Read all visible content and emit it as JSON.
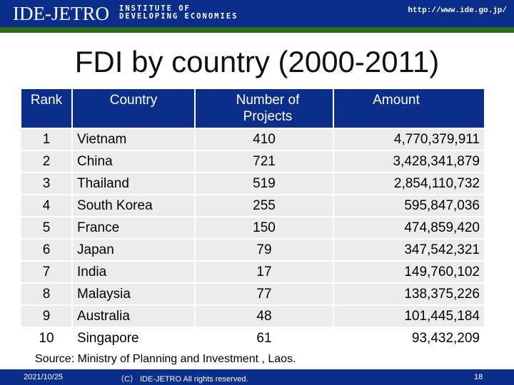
{
  "header": {
    "logo": "IDE-JETRO",
    "institute_line1": "INSTITUTE OF",
    "institute_line2": "DEVELOPING ECONOMIES",
    "url": "http://www.ide.go.jp/"
  },
  "title": "FDI by country (2000-2011)",
  "table": {
    "headers": [
      "Rank",
      "Country",
      "Number of Projects",
      "Amount"
    ],
    "rows": [
      {
        "rank": "1",
        "country": "Vietnam",
        "projects": "410",
        "amount": "4,770,379,911"
      },
      {
        "rank": "2",
        "country": "China",
        "projects": "721",
        "amount": "3,428,341,879"
      },
      {
        "rank": "3",
        "country": "Thailand",
        "projects": "519",
        "amount": "2,854,110,732"
      },
      {
        "rank": "4",
        "country": "South Korea",
        "projects": "255",
        "amount": "595,847,036"
      },
      {
        "rank": "5",
        "country": "France",
        "projects": "150",
        "amount": "474,859,420"
      },
      {
        "rank": "6",
        "country": "Japan",
        "projects": "79",
        "amount": "347,542,321"
      },
      {
        "rank": "7",
        "country": "India",
        "projects": "17",
        "amount": "149,760,102"
      },
      {
        "rank": "8",
        "country": "Malaysia",
        "projects": "77",
        "amount": "138,375,226"
      },
      {
        "rank": "9",
        "country": "Australia",
        "projects": "48",
        "amount": "101,445,184"
      },
      {
        "rank": "10",
        "country": "Singapore",
        "projects": "61",
        "amount": "93,432,209"
      }
    ]
  },
  "source": "Source: Ministry of Planning and Investment , Laos.",
  "footer": {
    "date": "2021/10/25",
    "copyright": "（C） IDE-JETRO All rights reserved.",
    "page": "18"
  }
}
